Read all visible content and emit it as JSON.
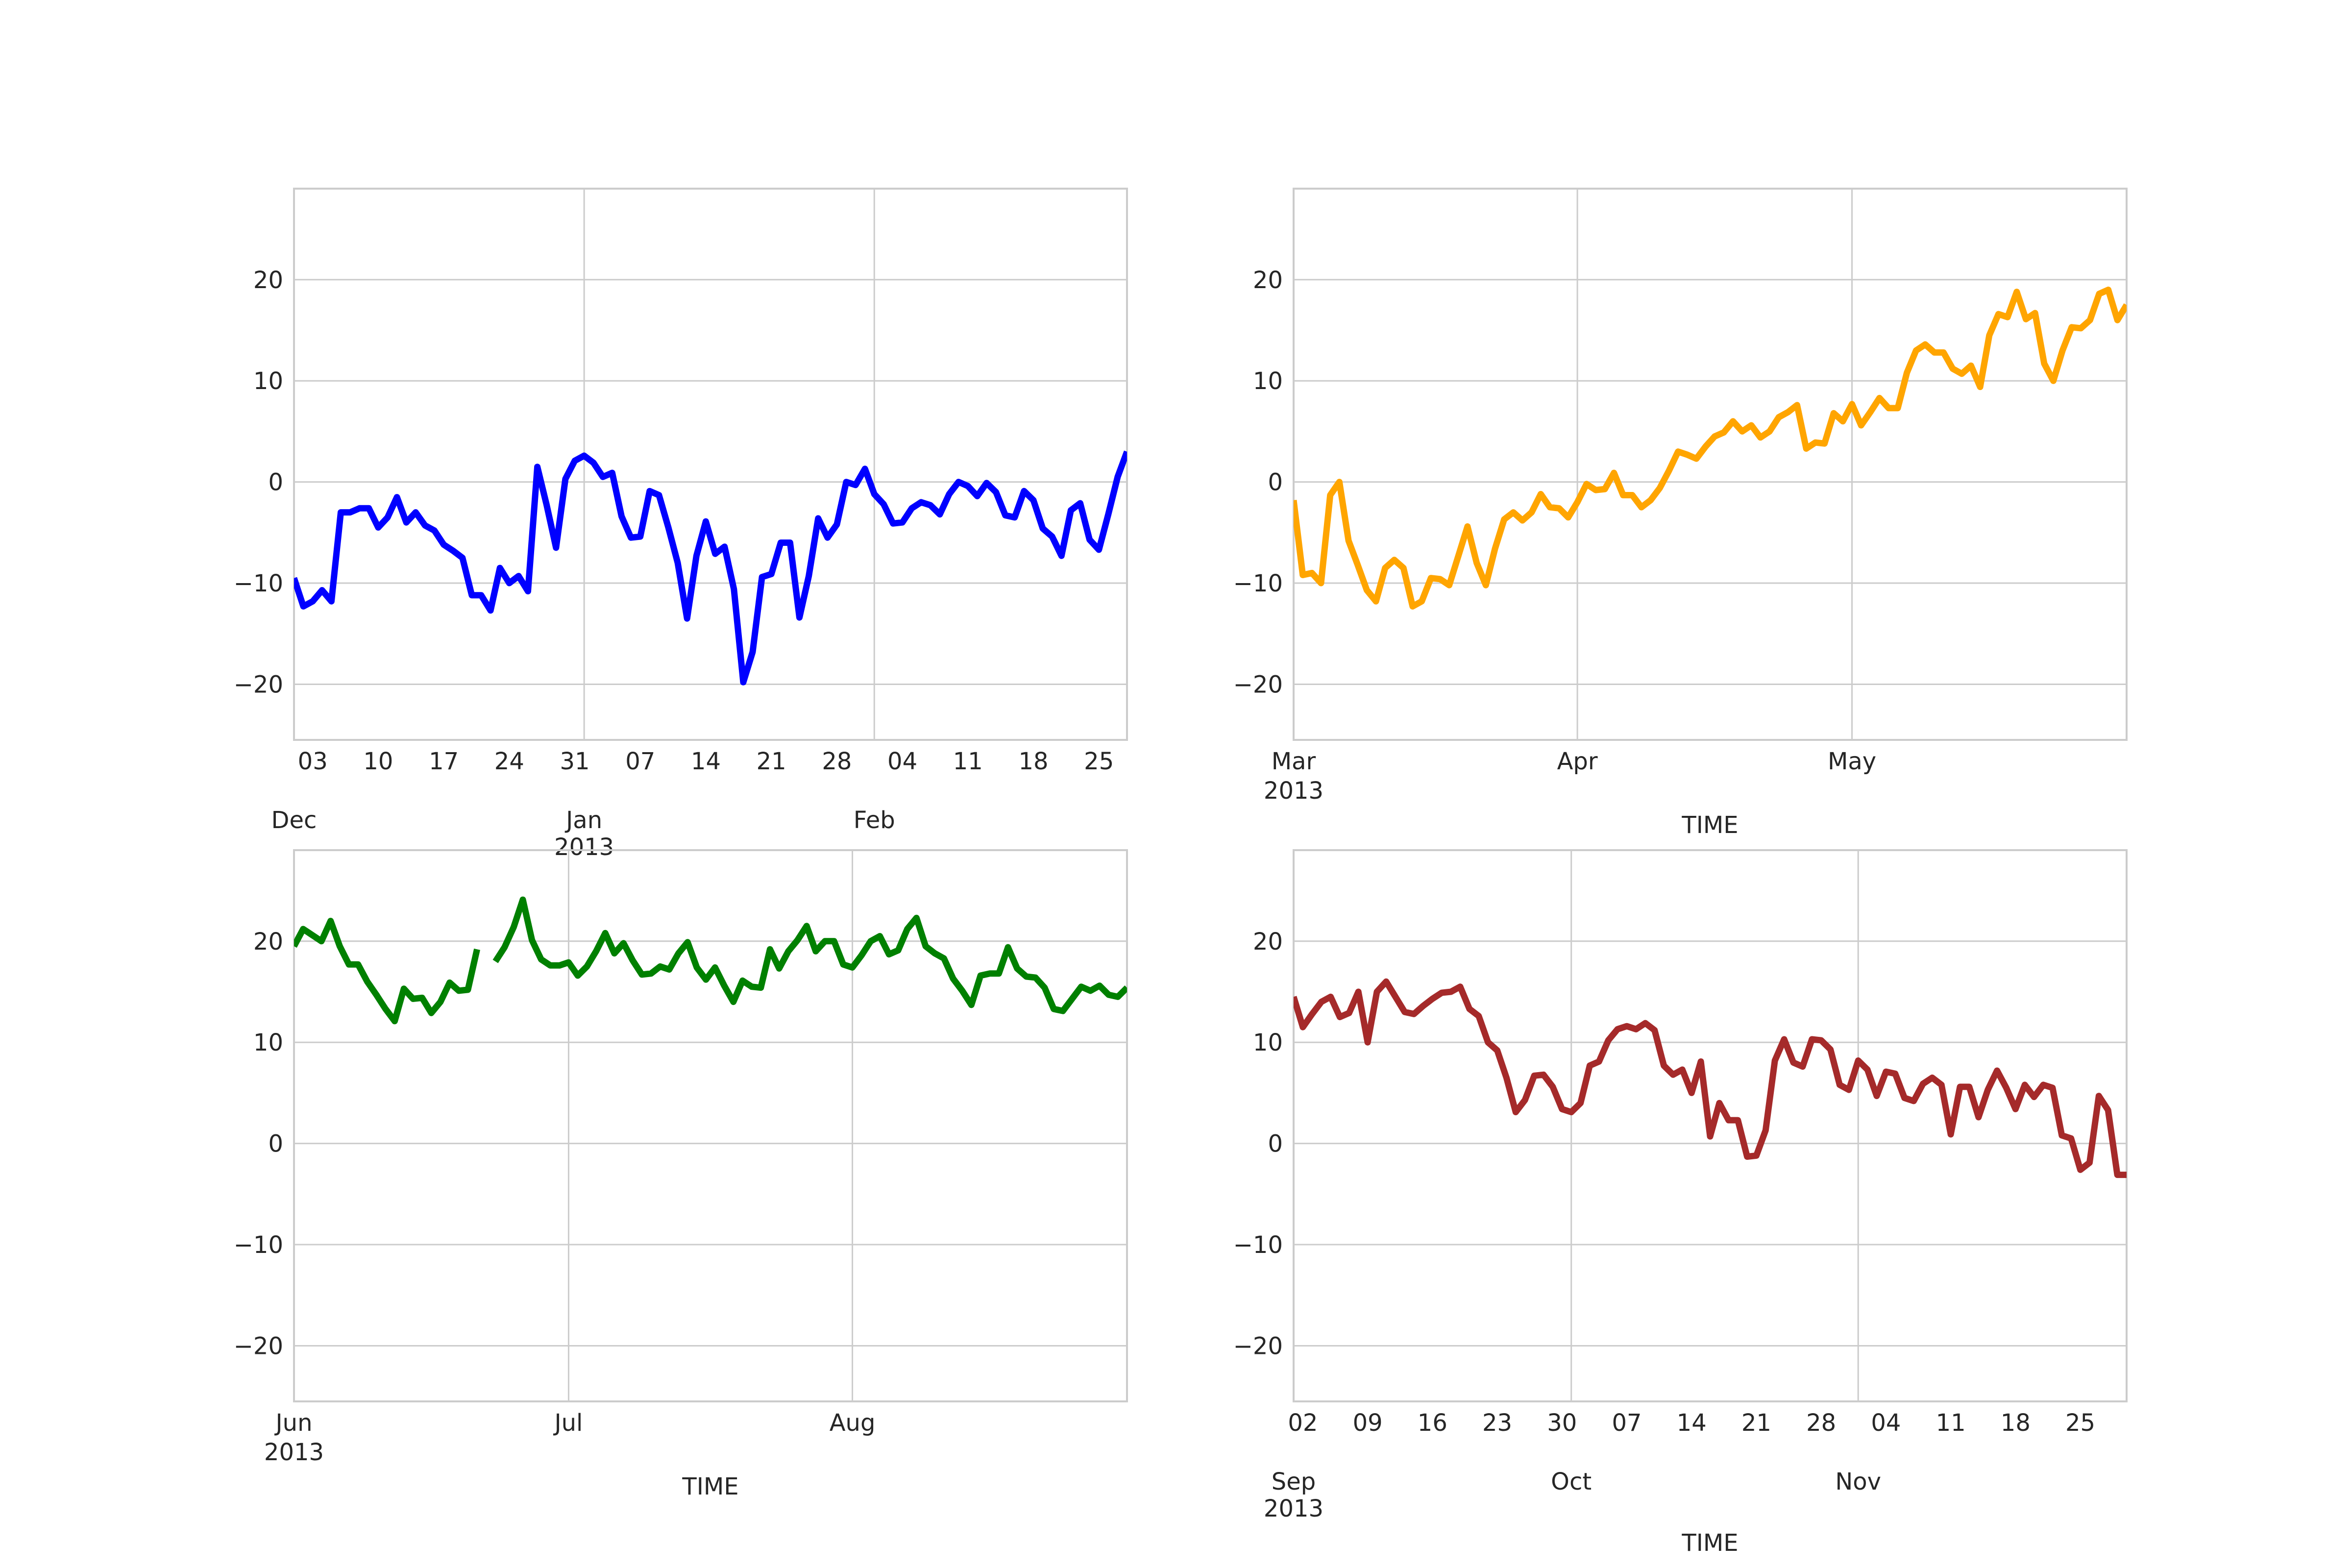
{
  "chart_data": [
    {
      "type": "line",
      "xlabel": "",
      "ylim": [
        -25.5,
        29
      ],
      "yticks": [
        "20",
        "10",
        "0",
        "−10",
        "−20"
      ],
      "ytick_values": [
        20,
        10,
        0,
        -10,
        -20
      ],
      "grid": true,
      "color": "#0000ff",
      "x_range": [
        "2012-12-01",
        "2013-02-28"
      ],
      "minor_ticks": [
        {
          "date": "2012-12-03",
          "label": "03"
        },
        {
          "date": "2012-12-10",
          "label": "10"
        },
        {
          "date": "2012-12-17",
          "label": "17"
        },
        {
          "date": "2012-12-24",
          "label": "24"
        },
        {
          "date": "2012-12-31",
          "label": "31"
        },
        {
          "date": "2013-01-07",
          "label": "07"
        },
        {
          "date": "2013-01-14",
          "label": "14"
        },
        {
          "date": "2013-01-21",
          "label": "21"
        },
        {
          "date": "2013-01-28",
          "label": "28"
        },
        {
          "date": "2013-02-04",
          "label": "04"
        },
        {
          "date": "2013-02-11",
          "label": "11"
        },
        {
          "date": "2013-02-18",
          "label": "18"
        },
        {
          "date": "2013-02-25",
          "label": "25"
        }
      ],
      "major_ticks": [
        {
          "date": "2012-12-01",
          "label": "Dec",
          "sublabel": ""
        },
        {
          "date": "2013-01-01",
          "label": "Jan",
          "sublabel": "2013"
        },
        {
          "date": "2013-02-01",
          "label": "Feb",
          "sublabel": ""
        }
      ],
      "x_start": "2012-12-01",
      "values": [
        -9.5,
        -12.3,
        -11.8,
        -10.7,
        -11.8,
        -3,
        -3,
        -2.6,
        -2.6,
        -4.5,
        -3.5,
        -1.5,
        -4,
        -3,
        -4.3,
        -4.8,
        -6.2,
        -6.8,
        -7.5,
        -11.2,
        -11.2,
        -12.7,
        -8.5,
        -10,
        -9.3,
        -10.8,
        1.5,
        -2.3,
        -6.5,
        0.3,
        2.1,
        2.6,
        1.9,
        0.5,
        0.9,
        -3.4,
        -5.5,
        -5.4,
        -0.9,
        -1.3,
        -4.5,
        -8,
        -13.5,
        -7.3,
        -3.9,
        -7.1,
        -6.4,
        -10.6,
        -19.8,
        -16.8,
        -9.4,
        -9.1,
        -6,
        -6,
        -13.4,
        -9.3,
        -3.6,
        -5.5,
        -4.2,
        0,
        -0.3,
        1.3,
        -1.2,
        -2.2,
        -4.1,
        -4,
        -2.6,
        -2,
        -2.3,
        -3.2,
        -1.2,
        0,
        -0.4,
        -1.4,
        -0.1,
        -1,
        -3.3,
        -3.5,
        -0.9,
        -1.8,
        -4.6,
        -5.4,
        -7.3,
        -2.8,
        -2.1,
        -5.7,
        -6.7,
        -3.2,
        0.5,
        3
      ]
    },
    {
      "type": "line",
      "xlabel": "TIME",
      "ylim": [
        -25.5,
        29
      ],
      "yticks": [
        "20",
        "10",
        "0",
        "−10",
        "−20"
      ],
      "ytick_values": [
        20,
        10,
        0,
        -10,
        -20
      ],
      "grid": true,
      "color": "#ffa500",
      "x_range": [
        "2013-03-01",
        "2013-05-31"
      ],
      "minor_ticks": [],
      "major_ticks": [
        {
          "date": "2013-03-01",
          "label": "Mar",
          "sublabel": "2013"
        },
        {
          "date": "2013-04-01",
          "label": "Apr",
          "sublabel": ""
        },
        {
          "date": "2013-05-01",
          "label": "May",
          "sublabel": ""
        }
      ],
      "x_start": "2013-03-01",
      "values": [
        -1.8,
        -9.2,
        -9,
        -10,
        -1.3,
        0,
        -5.8,
        -8.2,
        -10.7,
        -11.8,
        -8.5,
        -7.7,
        -8.5,
        -12.3,
        -11.8,
        -9.5,
        -9.6,
        -10.2,
        -7.3,
        -4.4,
        -8,
        -10.2,
        -6.6,
        -3.7,
        -3,
        -3.8,
        -3,
        -1.2,
        -2.5,
        -2.6,
        -3.5,
        -2,
        -0.2,
        -0.8,
        -0.7,
        0.9,
        -1.3,
        -1.3,
        -2.5,
        -1.8,
        -0.6,
        1.1,
        3,
        2.7,
        2.3,
        3.5,
        4.5,
        4.9,
        6,
        5,
        5.6,
        4.4,
        5,
        6.4,
        6.9,
        7.6,
        3.3,
        3.9,
        3.8,
        6.8,
        6,
        7.7,
        5.6,
        6.9,
        8.3,
        7.3,
        7.3,
        10.8,
        13,
        13.6,
        12.8,
        12.8,
        11.2,
        10.7,
        11.5,
        9.4,
        14.5,
        16.6,
        16.3,
        18.8,
        16.1,
        16.7,
        11.7,
        10,
        13,
        15.3,
        15.2,
        16,
        18.6,
        19,
        16,
        17.5
      ]
    },
    {
      "type": "line",
      "xlabel": "TIME",
      "ylim": [
        -25.5,
        29
      ],
      "yticks": [
        "20",
        "10",
        "0",
        "−10",
        "−20"
      ],
      "ytick_values": [
        20,
        10,
        0,
        -10,
        -20
      ],
      "grid": true,
      "color": "#008000",
      "x_range": [
        "2013-06-01",
        "2013-08-31"
      ],
      "minor_ticks": [],
      "major_ticks": [
        {
          "date": "2013-06-01",
          "label": "Jun",
          "sublabel": "2013"
        },
        {
          "date": "2013-07-01",
          "label": "Jul",
          "sublabel": ""
        },
        {
          "date": "2013-08-01",
          "label": "Aug",
          "sublabel": ""
        }
      ],
      "x_start": "2013-06-01",
      "values": [
        19.5,
        21.2,
        20.6,
        20,
        22,
        19.5,
        17.7,
        17.7,
        16,
        14.7,
        13.3,
        12.1,
        15.3,
        14.3,
        14.4,
        12.9,
        14,
        15.9,
        15.1,
        15.2,
        19.2,
        null,
        18,
        19.4,
        21.4,
        24.1,
        20.1,
        18.2,
        17.6,
        17.6,
        17.9,
        16.6,
        17.5,
        19,
        20.8,
        18.8,
        19.8,
        18.1,
        16.7,
        16.8,
        17.5,
        17.2,
        18.8,
        19.9,
        17.4,
        16.2,
        17.4,
        15.6,
        14,
        16.1,
        15.5,
        15.4,
        19.2,
        17.3,
        19,
        20.1,
        21.5,
        19,
        20,
        20,
        17.7,
        17.4,
        18.6,
        20,
        20.5,
        18.7,
        19.1,
        21.2,
        22.3,
        19.5,
        18.8,
        18.3,
        16.3,
        15.1,
        13.7,
        16.6,
        16.8,
        16.8,
        19.4,
        17.3,
        16.5,
        16.4,
        15.4,
        13.3,
        13.1,
        14.3,
        15.5,
        15.1,
        15.6,
        14.7,
        14.5,
        15.4
      ]
    },
    {
      "type": "line",
      "xlabel": "TIME",
      "ylim": [
        -25.5,
        29
      ],
      "yticks": [
        "20",
        "10",
        "0",
        "−10",
        "−20"
      ],
      "ytick_values": [
        20,
        10,
        0,
        -10,
        -20
      ],
      "grid": true,
      "color": "#a52a2a",
      "x_range": [
        "2013-09-01",
        "2013-11-30"
      ],
      "minor_ticks": [
        {
          "date": "2013-09-02",
          "label": "02"
        },
        {
          "date": "2013-09-09",
          "label": "09"
        },
        {
          "date": "2013-09-16",
          "label": "16"
        },
        {
          "date": "2013-09-23",
          "label": "23"
        },
        {
          "date": "2013-09-30",
          "label": "30"
        },
        {
          "date": "2013-10-07",
          "label": "07"
        },
        {
          "date": "2013-10-14",
          "label": "14"
        },
        {
          "date": "2013-10-21",
          "label": "21"
        },
        {
          "date": "2013-10-28",
          "label": "28"
        },
        {
          "date": "2013-11-04",
          "label": "04"
        },
        {
          "date": "2013-11-11",
          "label": "11"
        },
        {
          "date": "2013-11-18",
          "label": "18"
        },
        {
          "date": "2013-11-25",
          "label": "25"
        }
      ],
      "major_ticks": [
        {
          "date": "2013-09-01",
          "label": "Sep",
          "sublabel": "2013"
        },
        {
          "date": "2013-10-01",
          "label": "Oct",
          "sublabel": ""
        },
        {
          "date": "2013-11-01",
          "label": "Nov",
          "sublabel": ""
        }
      ],
      "x_start": "2013-09-01",
      "values": [
        14.5,
        11.5,
        12.8,
        14,
        14.5,
        12.5,
        12.9,
        15,
        10,
        15,
        16,
        14.5,
        13,
        12.8,
        13.6,
        14.3,
        14.9,
        15,
        15.5,
        13.3,
        12.6,
        10,
        9.2,
        6.5,
        3.1,
        4.3,
        6.7,
        6.8,
        5.6,
        3.4,
        3.1,
        4,
        7.7,
        8.1,
        10.2,
        11.3,
        11.6,
        11.3,
        11.9,
        11.2,
        7.7,
        6.8,
        7.3,
        5,
        8.1,
        0.7,
        4,
        2.3,
        2.3,
        -1.3,
        -1.2,
        1.3,
        8.2,
        10.3,
        8,
        7.6,
        10.3,
        10.2,
        9.3,
        5.8,
        5.3,
        8.2,
        7.3,
        4.7,
        7.1,
        6.9,
        4.5,
        4.2,
        5.9,
        6.5,
        5.8,
        0.9,
        5.6,
        5.6,
        2.6,
        5.3,
        7.2,
        5.5,
        3.4,
        5.8,
        4.6,
        5.8,
        5.5,
        0.8,
        0.5,
        -2.6,
        -1.9,
        4.7,
        3.3,
        -3.1,
        -3.1
      ]
    }
  ]
}
